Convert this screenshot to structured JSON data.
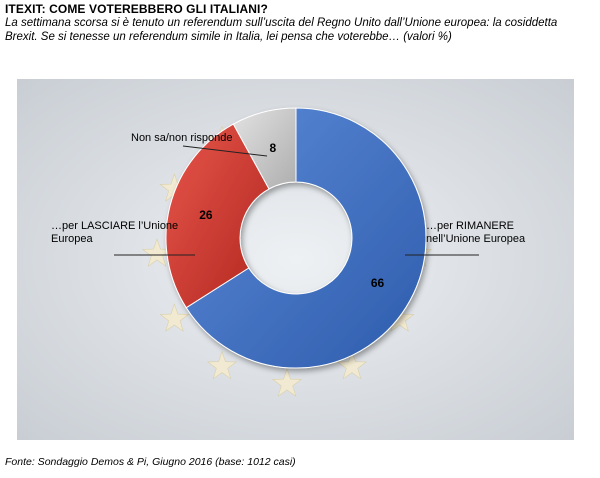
{
  "header": {
    "title": "ITEXIT: COME VOTEREBBERO GLI ITALIANI?",
    "subtitle": "La settimana scorsa si è tenuto un referendum sull’uscita del Regno Unito dall’Unione europea: la cosiddetta Brexit. Se si tenesse un referendum simile in Italia, lei pensa che voterebbe… (valori %)"
  },
  "footer": {
    "source": "Fonte: Sondaggio Demos & Pi, Giugno 2016 (base: 1012 casi)"
  },
  "background": {
    "decoration": "eu-flag-stars",
    "star_color": "#f3ead0"
  },
  "chart_data": {
    "type": "pie",
    "donut": true,
    "categories": [
      "…per RIMANERE nell’Unione  Europea",
      "…per LASCIARE  l’Unione Europea",
      "Non sa/non risponde"
    ],
    "values": [
      66,
      26,
      8
    ],
    "colors": [
      "#3f72c4",
      "#cf3b33",
      "#c8c8c8"
    ],
    "label_lines": [
      [
        "…per RIMANERE",
        "nell’Unione  Europea"
      ],
      [
        "…per LASCIARE  l’Unione",
        "Europea"
      ],
      [
        "Non sa/non risponde"
      ]
    ],
    "data_labels": [
      "66",
      "26",
      "8"
    ]
  }
}
